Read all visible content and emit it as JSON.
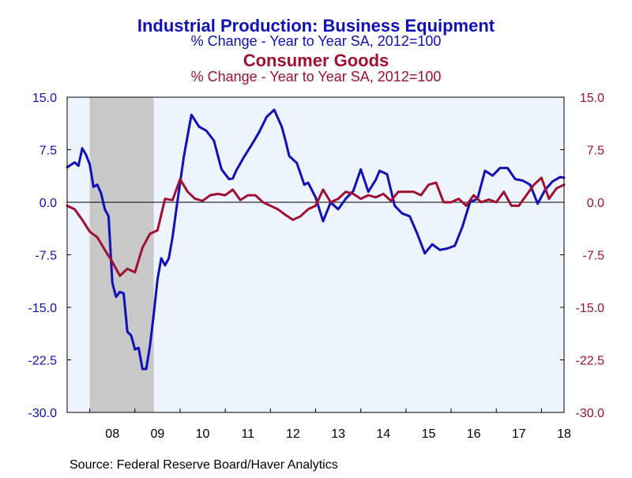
{
  "titles": {
    "main": "Industrial Production: Business Equipment",
    "main_sub": "% Change - Year to Year     SA, 2012=100",
    "second": "Consumer Goods",
    "second_sub": "% Change - Year to Year     SA, 2012=100"
  },
  "source": "Source:  Federal Reserve Board/Haver Analytics",
  "colors": {
    "series1": "#1010b8",
    "series2": "#a01030",
    "plot_bg": "#eef4fe",
    "recession": "#c8c8c8"
  },
  "chart_data": {
    "type": "line",
    "ylim": [
      -30,
      15
    ],
    "yticks": [
      15.0,
      7.5,
      0.0,
      -7.5,
      -15.0,
      -22.5,
      -30.0
    ],
    "ytick_labels_left": [
      "15.0",
      "7.5",
      "0.0",
      "-7.5",
      "-15.0",
      "-22.5",
      "-30.0"
    ],
    "ytick_labels_right": [
      "15.0",
      "7.5",
      "0.0",
      "-7.5",
      "-15.0",
      "-22.5",
      "-30.0"
    ],
    "x_labels": [
      "08",
      "09",
      "10",
      "11",
      "12",
      "13",
      "14",
      "15",
      "16",
      "17",
      "18"
    ],
    "xlim": [
      "2007-07",
      "2018-07"
    ],
    "recession": [
      "2008-01",
      "2009-06"
    ],
    "zero_line": 0,
    "series": [
      {
        "name": "Industrial Production: Business Equipment",
        "dates": [
          "2007-07",
          "2007-09",
          "2007-10",
          "2007-11",
          "2007-12",
          "2008-01",
          "2008-02",
          "2008-03",
          "2008-04",
          "2008-05",
          "2008-06",
          "2008-07",
          "2008-08",
          "2008-09",
          "2008-10",
          "2008-11",
          "2008-12",
          "2009-01",
          "2009-02",
          "2009-03",
          "2009-04",
          "2009-05",
          "2009-06",
          "2009-07",
          "2009-08",
          "2009-09",
          "2009-10",
          "2009-11",
          "2009-12",
          "2010-02",
          "2010-04",
          "2010-06",
          "2010-08",
          "2010-10",
          "2010-12",
          "2011-02",
          "2011-03",
          "2011-04",
          "2011-06",
          "2011-08",
          "2011-10",
          "2011-12",
          "2012-02",
          "2012-04",
          "2012-05",
          "2012-06",
          "2012-08",
          "2012-10",
          "2012-11",
          "2013-01",
          "2013-03",
          "2013-05",
          "2013-07",
          "2013-09",
          "2013-11",
          "2014-01",
          "2014-03",
          "2014-05",
          "2014-06",
          "2014-08",
          "2014-10",
          "2014-12",
          "2015-02",
          "2015-04",
          "2015-06",
          "2015-08",
          "2015-10",
          "2015-12",
          "2016-02",
          "2016-04",
          "2016-06",
          "2016-08",
          "2016-10",
          "2016-12",
          "2017-02",
          "2017-04",
          "2017-06",
          "2017-08",
          "2017-10",
          "2017-12",
          "2018-02",
          "2018-04",
          "2018-06",
          "2018-07"
        ],
        "values": [
          5.0,
          5.7,
          5.2,
          7.7,
          6.8,
          5.4,
          2.2,
          2.5,
          1.3,
          -1.0,
          -2.0,
          -11.5,
          -13.5,
          -12.8,
          -13.0,
          -18.5,
          -19.0,
          -21.0,
          -20.8,
          -23.8,
          -23.8,
          -20.5,
          -16.0,
          -11.0,
          -8.0,
          -9.0,
          -8.0,
          -5.0,
          -1.0,
          6.5,
          12.5,
          10.8,
          10.2,
          8.8,
          4.7,
          3.3,
          3.4,
          4.6,
          6.5,
          8.2,
          10.0,
          12.2,
          13.2,
          10.8,
          8.8,
          6.6,
          5.6,
          2.5,
          2.8,
          0.7,
          -2.7,
          0.0,
          -1.0,
          0.5,
          1.6,
          4.7,
          1.5,
          3.2,
          4.5,
          4.0,
          -0.5,
          -1.6,
          -2.0,
          -4.5,
          -7.3,
          -6.0,
          -6.8,
          -6.6,
          -6.2,
          -3.5,
          0.0,
          0.5,
          4.5,
          3.8,
          4.9,
          4.9,
          3.3,
          3.1,
          2.5,
          -0.2,
          1.8,
          3.0,
          3.6,
          3.5
        ]
      },
      {
        "name": "Consumer Goods",
        "dates": [
          "2007-07",
          "2007-09",
          "2007-11",
          "2008-01",
          "2008-03",
          "2008-05",
          "2008-07",
          "2008-09",
          "2008-11",
          "2009-01",
          "2009-03",
          "2009-05",
          "2009-07",
          "2009-09",
          "2009-11",
          "2010-01",
          "2010-03",
          "2010-05",
          "2010-07",
          "2010-09",
          "2010-11",
          "2011-01",
          "2011-03",
          "2011-05",
          "2011-07",
          "2011-09",
          "2011-11",
          "2012-01",
          "2012-03",
          "2012-05",
          "2012-07",
          "2012-09",
          "2012-11",
          "2013-01",
          "2013-03",
          "2013-05",
          "2013-07",
          "2013-09",
          "2013-11",
          "2014-01",
          "2014-03",
          "2014-05",
          "2014-07",
          "2014-09",
          "2014-11",
          "2015-01",
          "2015-03",
          "2015-05",
          "2015-07",
          "2015-09",
          "2015-11",
          "2016-01",
          "2016-03",
          "2016-05",
          "2016-07",
          "2016-09",
          "2016-11",
          "2017-01",
          "2017-03",
          "2017-05",
          "2017-07",
          "2017-09",
          "2017-11",
          "2018-01",
          "2018-03",
          "2018-05",
          "2018-07"
        ],
        "values": [
          -0.5,
          -1.0,
          -2.5,
          -4.2,
          -5.0,
          -6.8,
          -8.5,
          -10.5,
          -9.5,
          -10.0,
          -6.5,
          -4.5,
          -4.0,
          0.5,
          0.3,
          3.3,
          1.5,
          0.5,
          0.2,
          1.0,
          1.2,
          1.0,
          1.8,
          0.3,
          1.0,
          1.0,
          0.0,
          -0.5,
          -1.0,
          -1.8,
          -2.5,
          -2.0,
          -1.0,
          -0.5,
          1.8,
          0.0,
          0.5,
          1.5,
          1.2,
          0.5,
          1.0,
          0.7,
          1.2,
          0.2,
          1.5,
          1.5,
          1.5,
          1.0,
          2.5,
          2.8,
          0.0,
          0.0,
          0.5,
          -0.5,
          1.0,
          0.0,
          0.4,
          0.0,
          1.5,
          -0.5,
          -0.5,
          1.0,
          2.5,
          3.5,
          0.5,
          2.0,
          2.5
        ]
      }
    ]
  }
}
